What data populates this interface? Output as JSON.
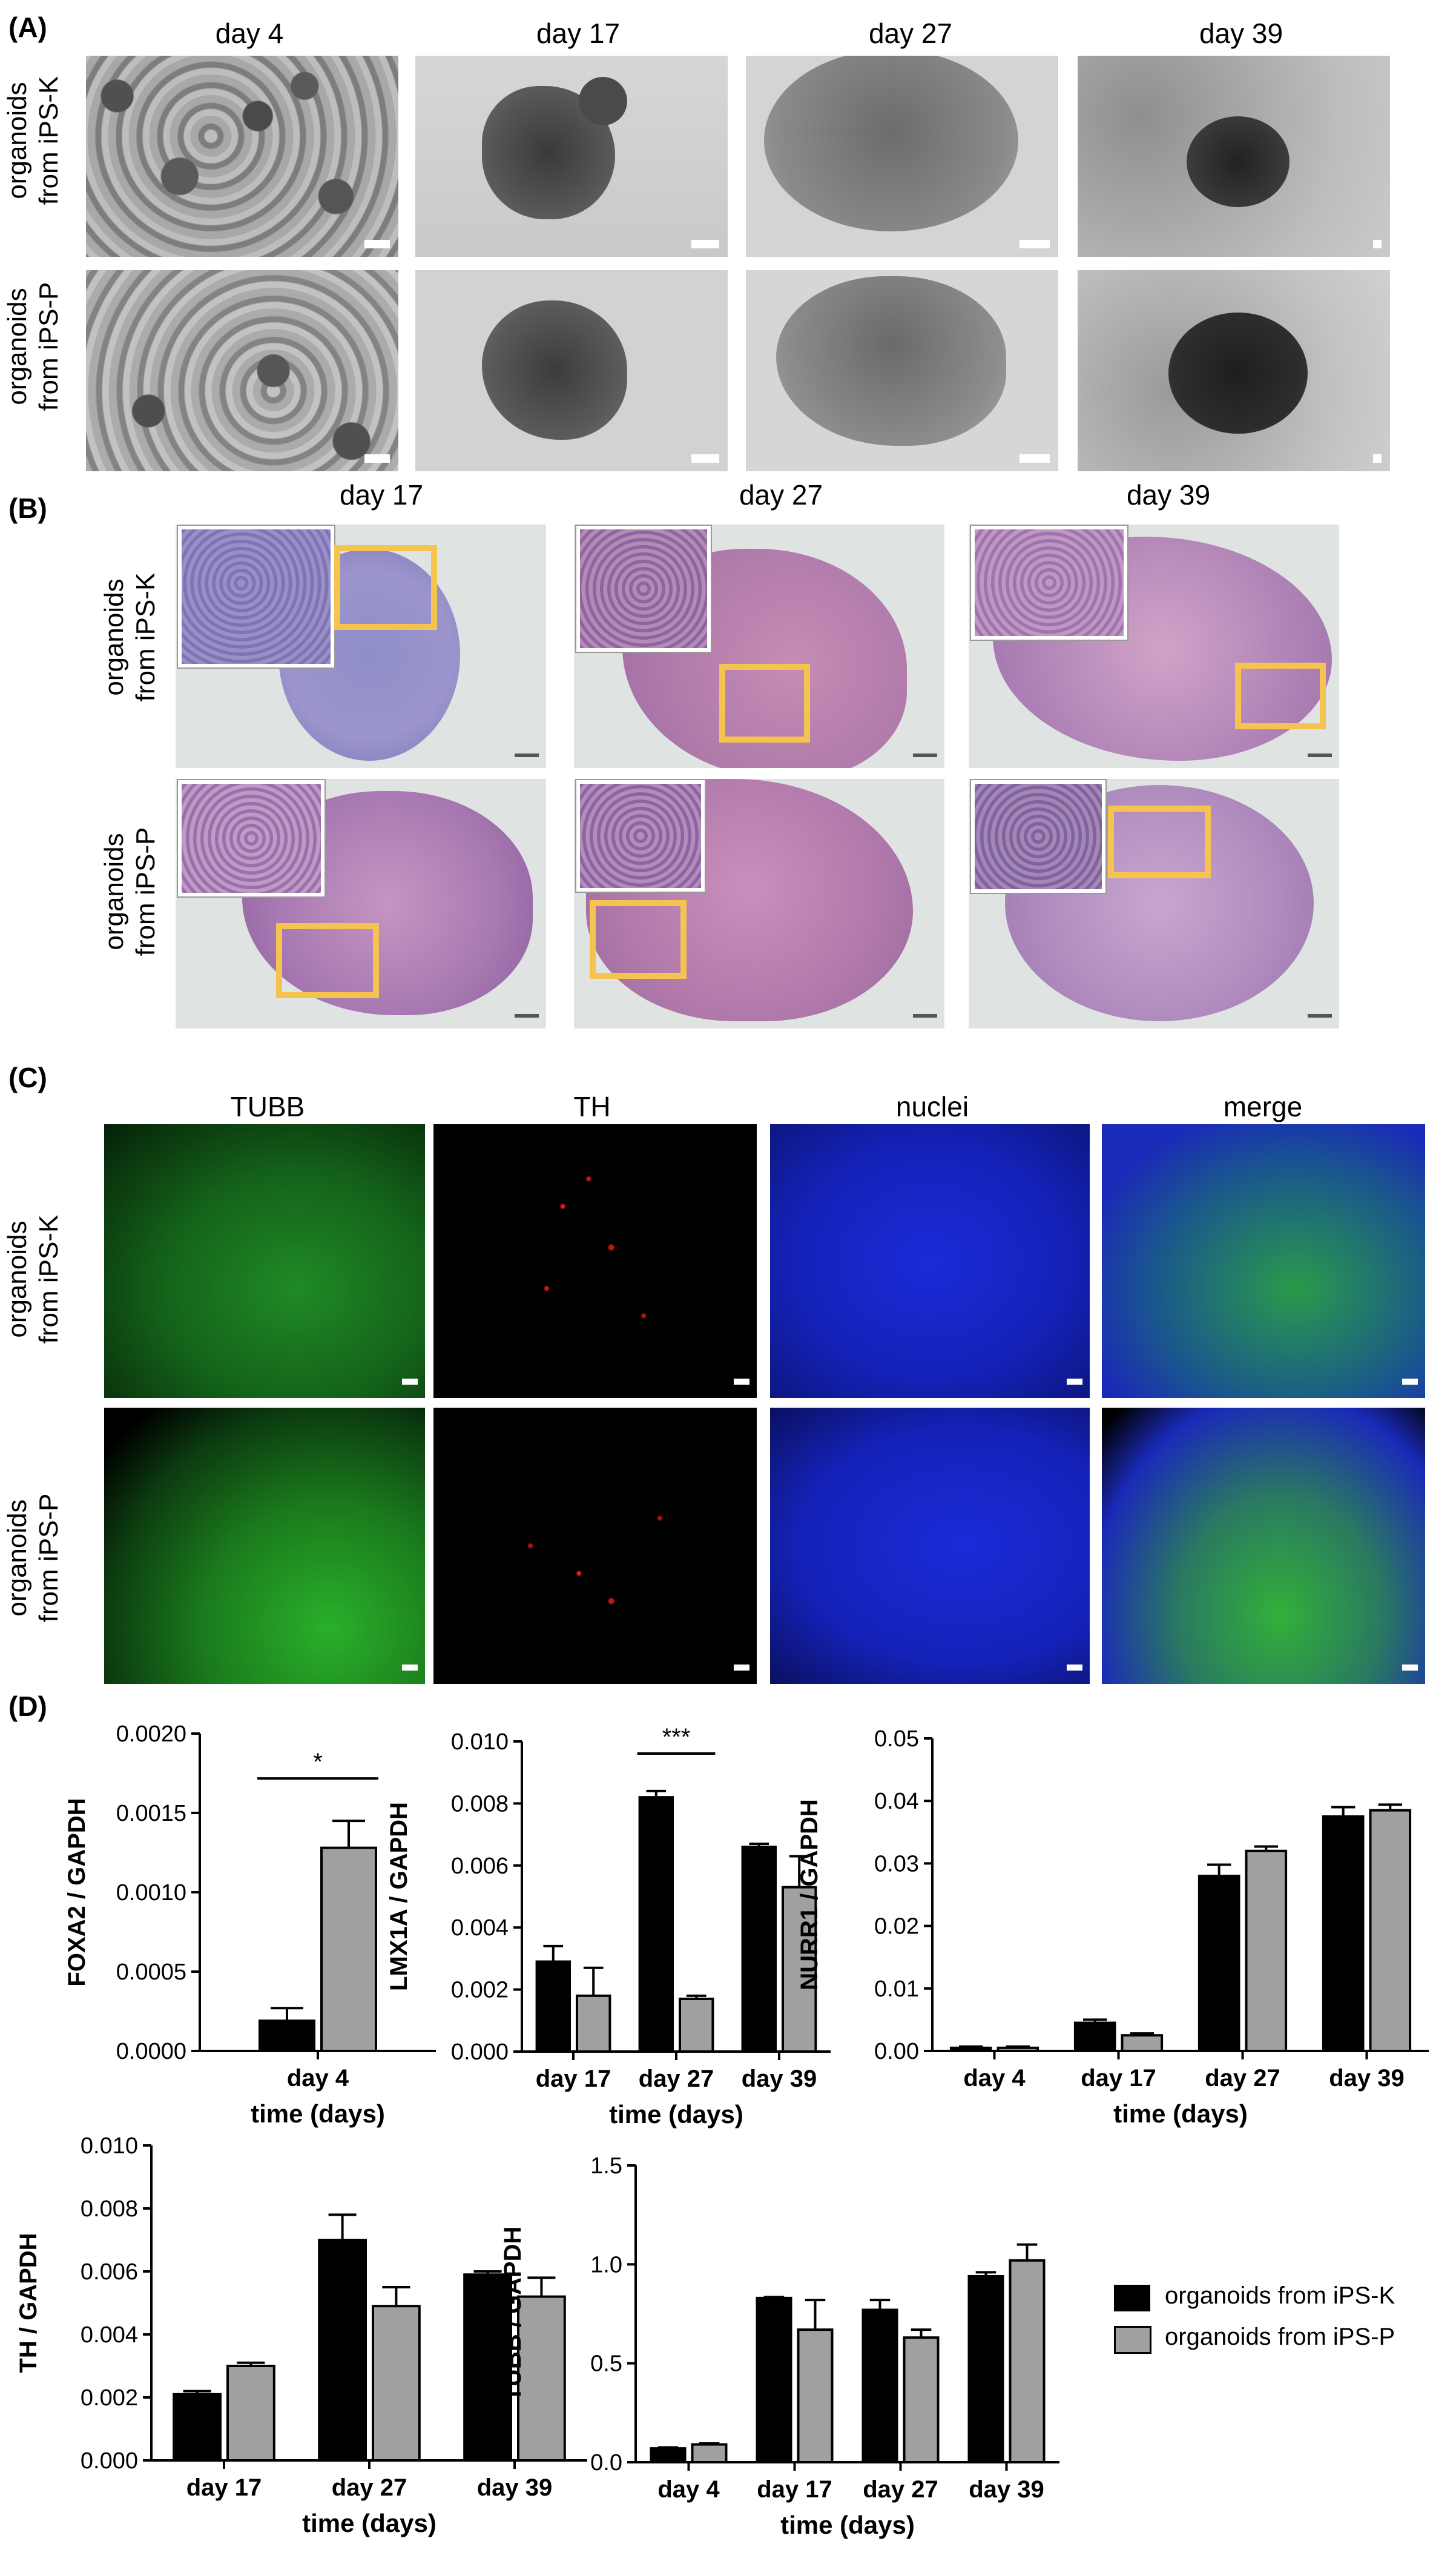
{
  "panel_a": {
    "label": "(A)",
    "columns": [
      "day 4",
      "day 17",
      "day 27",
      "day 39"
    ],
    "rows": [
      [
        "organoids",
        "from iPS-K"
      ],
      [
        "organoids",
        "from iPS-P"
      ]
    ]
  },
  "panel_b": {
    "label": "(B)",
    "columns": [
      "day 17",
      "day 27",
      "day 39"
    ],
    "rows": [
      [
        "organoids",
        "from iPS-K"
      ],
      [
        "organoids",
        "from iPS-P"
      ]
    ]
  },
  "panel_c": {
    "label": "(C)",
    "columns": [
      "TUBB",
      "TH",
      "nuclei",
      "merge"
    ],
    "rows": [
      [
        "organoids",
        "from iPS-K"
      ],
      [
        "organoids",
        "from iPS-P"
      ]
    ],
    "channel_colors": {
      "TUBB": "#22b022",
      "TH": "#e01818",
      "nuclei": "#1428e0"
    }
  },
  "panel_d": {
    "label": "(D)",
    "legend": [
      "organoids from iPS-K",
      "organoids from iPS-P"
    ],
    "series_colors": [
      "#000000",
      "#a0a0a0"
    ]
  },
  "chart_data": [
    {
      "type": "bar",
      "id": "foxa2",
      "ylabel": "FOXA2 / GAPDH",
      "xlabel": "time (days)",
      "categories": [
        "day 4"
      ],
      "ylim": [
        0,
        0.002
      ],
      "yticks": [
        "0.0000",
        "0.0005",
        "0.0010",
        "0.0015",
        "0.0020"
      ],
      "series": [
        {
          "name": "organoids from iPS-K",
          "values": [
            0.00019
          ],
          "errors": [
            8e-05
          ]
        },
        {
          "name": "organoids from iPS-P",
          "values": [
            0.00128
          ],
          "errors": [
            0.00017
          ]
        }
      ],
      "significance": [
        {
          "category": "day 4",
          "label": "*"
        }
      ]
    },
    {
      "type": "bar",
      "id": "lmx1a",
      "ylabel": "LMX1A / GAPDH",
      "xlabel": "time (days)",
      "categories": [
        "day 17",
        "day 27",
        "day 39"
      ],
      "ylim": [
        0,
        0.01
      ],
      "yticks": [
        "0.000",
        "0.002",
        "0.004",
        "0.006",
        "0.008",
        "0.010"
      ],
      "series": [
        {
          "name": "organoids from iPS-K",
          "values": [
            0.0029,
            0.0082,
            0.0066
          ],
          "errors": [
            0.0005,
            0.0002,
            0.0001
          ]
        },
        {
          "name": "organoids from iPS-P",
          "values": [
            0.0018,
            0.0017,
            0.0053
          ],
          "errors": [
            0.0009,
            0.0001,
            0.001
          ]
        }
      ],
      "significance": [
        {
          "category": "day 27",
          "label": "***"
        }
      ]
    },
    {
      "type": "bar",
      "id": "nurr1",
      "ylabel": "NURR1 / GAPDH",
      "xlabel": "time (days)",
      "categories": [
        "day 4",
        "day 17",
        "day 27",
        "day 39"
      ],
      "ylim": [
        0,
        0.05
      ],
      "yticks": [
        "0.00",
        "0.01",
        "0.02",
        "0.03",
        "0.04",
        "0.05"
      ],
      "series": [
        {
          "name": "organoids from iPS-K",
          "values": [
            0.0005,
            0.0045,
            0.028,
            0.0375
          ],
          "errors": [
            0.0002,
            0.0005,
            0.0018,
            0.0015
          ]
        },
        {
          "name": "organoids from iPS-P",
          "values": [
            0.0005,
            0.0025,
            0.032,
            0.0385
          ],
          "errors": [
            0.0002,
            0.0003,
            0.0007,
            0.0009
          ]
        }
      ]
    },
    {
      "type": "bar",
      "id": "th",
      "ylabel": "TH / GAPDH",
      "xlabel": "time (days)",
      "categories": [
        "day 17",
        "day 27",
        "day 39"
      ],
      "ylim": [
        0,
        0.01
      ],
      "yticks": [
        "0.000",
        "0.002",
        "0.004",
        "0.006",
        "0.008",
        "0.010"
      ],
      "series": [
        {
          "name": "organoids from iPS-K",
          "values": [
            0.0021,
            0.007,
            0.0059
          ],
          "errors": [
            0.0001,
            0.0008,
            0.0001
          ]
        },
        {
          "name": "organoids from iPS-P",
          "values": [
            0.003,
            0.0049,
            0.0052
          ],
          "errors": [
            0.0001,
            0.0006,
            0.0006
          ]
        }
      ]
    },
    {
      "type": "bar",
      "id": "tubb",
      "ylabel": "TUBB / GAPDH",
      "xlabel": "time (days)",
      "categories": [
        "day 4",
        "day 17",
        "day 27",
        "day 39"
      ],
      "ylim": [
        0,
        1.5
      ],
      "yticks": [
        "0.0",
        "0.5",
        "1.0",
        "1.5"
      ],
      "series": [
        {
          "name": "organoids from iPS-K",
          "values": [
            0.07,
            0.83,
            0.77,
            0.94
          ],
          "errors": [
            0.005,
            0.005,
            0.05,
            0.02
          ]
        },
        {
          "name": "organoids from iPS-P",
          "values": [
            0.09,
            0.67,
            0.63,
            1.02
          ],
          "errors": [
            0.005,
            0.15,
            0.04,
            0.08
          ]
        }
      ]
    }
  ]
}
